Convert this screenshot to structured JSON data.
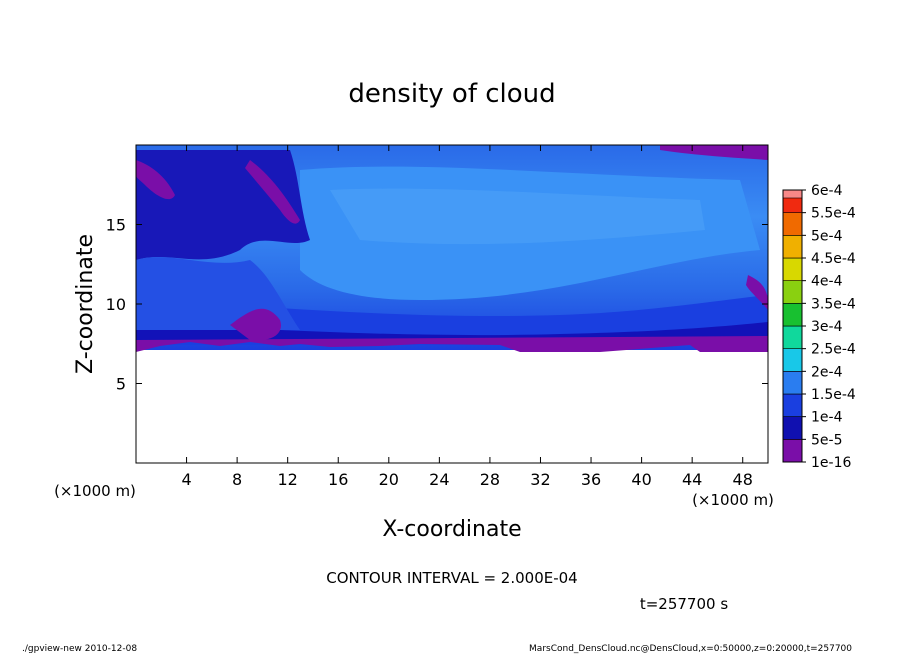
{
  "chart_data": {
    "type": "heatmap",
    "title": "density of cloud",
    "xlabel": "X-coordinate",
    "ylabel": "Z-coordinate",
    "x_unit": "(×1000 m)",
    "y_unit": "(×1000 m)",
    "xlim": [
      0,
      50
    ],
    "ylim": [
      0,
      20
    ],
    "x_ticks": [
      "4",
      "8",
      "12",
      "16",
      "20",
      "24",
      "28",
      "32",
      "36",
      "40",
      "44",
      "48"
    ],
    "y_ticks": [
      "5",
      "10",
      "15"
    ],
    "colorbar": {
      "labels": [
        "1e-16",
        "5e-5",
        "1e-4",
        "1.5e-4",
        "2e-4",
        "2.5e-4",
        "3e-4",
        "3.5e-4",
        "4e-4",
        "4.5e-4",
        "5e-4",
        "5.5e-4",
        "6e-4"
      ],
      "colors": [
        "#7a0ea8",
        "#1010b0",
        "#1a3fe0",
        "#2a7df0",
        "#18c8e8",
        "#10d89c",
        "#18c030",
        "#8ad010",
        "#d8d800",
        "#f0b000",
        "#f06a00",
        "#f02a10",
        "#f88888"
      ]
    },
    "contour_interval": "CONTOUR INTERVAL = 2.000E-04",
    "time": "t=257700 s",
    "field_regions": {
      "cloud_base_z": 7.5,
      "cloud_top_z": 20,
      "dominant_range": "5e-5 to 1.5e-4",
      "edge_value": "1e-16"
    }
  },
  "footer": {
    "left": "./gpview-new  2010-12-08",
    "right": "MarsCond_DensCloud.nc@DensCloud,x=0:50000,z=0:20000,t=257700"
  }
}
